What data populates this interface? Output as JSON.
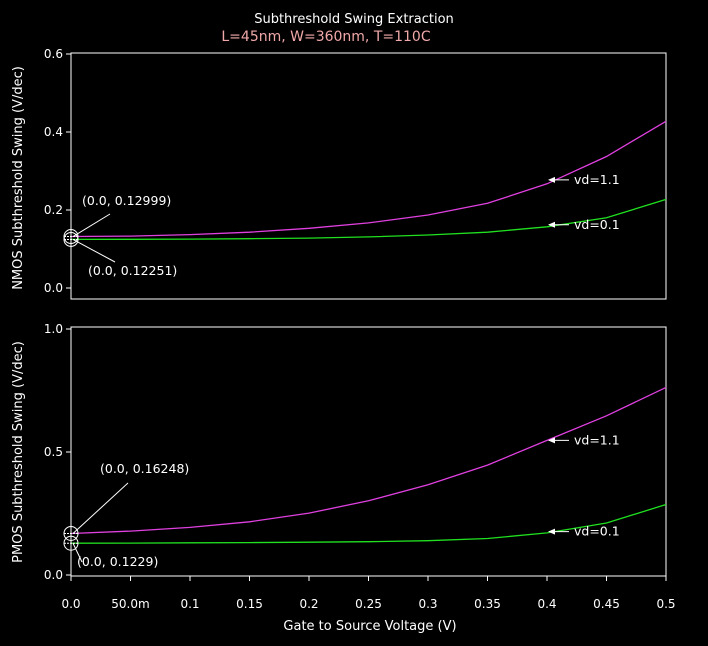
{
  "title": "Subthreshold Swing Extraction",
  "subtitle": "L=45nm, W=360nm, T=110C",
  "xlabel": "Gate to Source Voltage (V)",
  "colors": {
    "background": "#000000",
    "vd_1_1": "#e040e0",
    "vd_0_1": "#20e020",
    "axes": "#ffffff"
  },
  "chart_data": [
    {
      "type": "line",
      "ylabel": "NMOS Subthreshold Swing (V/dec)",
      "xlim": [
        0,
        0.5
      ],
      "ylim": [
        -0.03,
        0.6
      ],
      "y_ticks": [
        "0.0",
        "0.2",
        "0.4",
        "0.6"
      ],
      "x": [
        0,
        0.05,
        0.1,
        0.15,
        0.2,
        0.25,
        0.3,
        0.35,
        0.4,
        0.45,
        0.5
      ],
      "series": [
        {
          "name": "vd=1.1",
          "values": [
            0.12999,
            0.131,
            0.135,
            0.141,
            0.151,
            0.165,
            0.185,
            0.215,
            0.265,
            0.335,
            0.425
          ]
        },
        {
          "name": "vd=0.1",
          "values": [
            0.12251,
            0.1228,
            0.1235,
            0.1245,
            0.126,
            0.129,
            0.134,
            0.141,
            0.155,
            0.178,
            0.225
          ]
        }
      ],
      "markers": [
        {
          "label": "(0.0, 0.12999)",
          "x": 0.0,
          "y": 0.12999
        },
        {
          "label": "(0.0, 0.12251)",
          "x": 0.0,
          "y": 0.12251
        }
      ],
      "series_labels": [
        {
          "text": "vd=1.1",
          "x": 0.4,
          "y": 0.275
        },
        {
          "text": "vd=0.1",
          "x": 0.4,
          "y": 0.16
        }
      ]
    },
    {
      "type": "line",
      "ylabel": "PMOS Subthreshold Swing (V/dec)",
      "xlim": [
        0,
        0.5
      ],
      "ylim": [
        -0.01,
        1.0
      ],
      "y_ticks": [
        "0.0",
        "0.5",
        "1.0"
      ],
      "x": [
        0,
        0.05,
        0.1,
        0.15,
        0.2,
        0.25,
        0.3,
        0.35,
        0.4,
        0.45,
        0.5
      ],
      "series": [
        {
          "name": "vd=1.1",
          "values": [
            0.16248,
            0.172,
            0.187,
            0.21,
            0.245,
            0.295,
            0.36,
            0.44,
            0.54,
            0.64,
            0.755
          ]
        },
        {
          "name": "vd=0.1",
          "values": [
            0.1229,
            0.1235,
            0.1245,
            0.1255,
            0.127,
            0.129,
            0.133,
            0.142,
            0.165,
            0.205,
            0.28
          ]
        }
      ],
      "markers": [
        {
          "label": "(0.0, 0.16248)",
          "x": 0.0,
          "y": 0.16248
        },
        {
          "label": "(0.0, 0.1229)",
          "x": 0.0,
          "y": 0.1229
        }
      ],
      "series_labels": [
        {
          "text": "vd=1.1",
          "x": 0.4,
          "y": 0.54
        },
        {
          "text": "vd=0.1",
          "x": 0.4,
          "y": 0.17
        }
      ]
    }
  ],
  "x_ticks": [
    {
      "value": 0.0,
      "label": "0.0"
    },
    {
      "value": 0.05,
      "label": "50.0m"
    },
    {
      "value": 0.1,
      "label": "0.1"
    },
    {
      "value": 0.15,
      "label": "0.15"
    },
    {
      "value": 0.2,
      "label": "0.2"
    },
    {
      "value": 0.25,
      "label": "0.25"
    },
    {
      "value": 0.3,
      "label": "0.3"
    },
    {
      "value": 0.35,
      "label": "0.35"
    },
    {
      "value": 0.4,
      "label": "0.4"
    },
    {
      "value": 0.45,
      "label": "0.45"
    },
    {
      "value": 0.5,
      "label": "0.5"
    }
  ]
}
